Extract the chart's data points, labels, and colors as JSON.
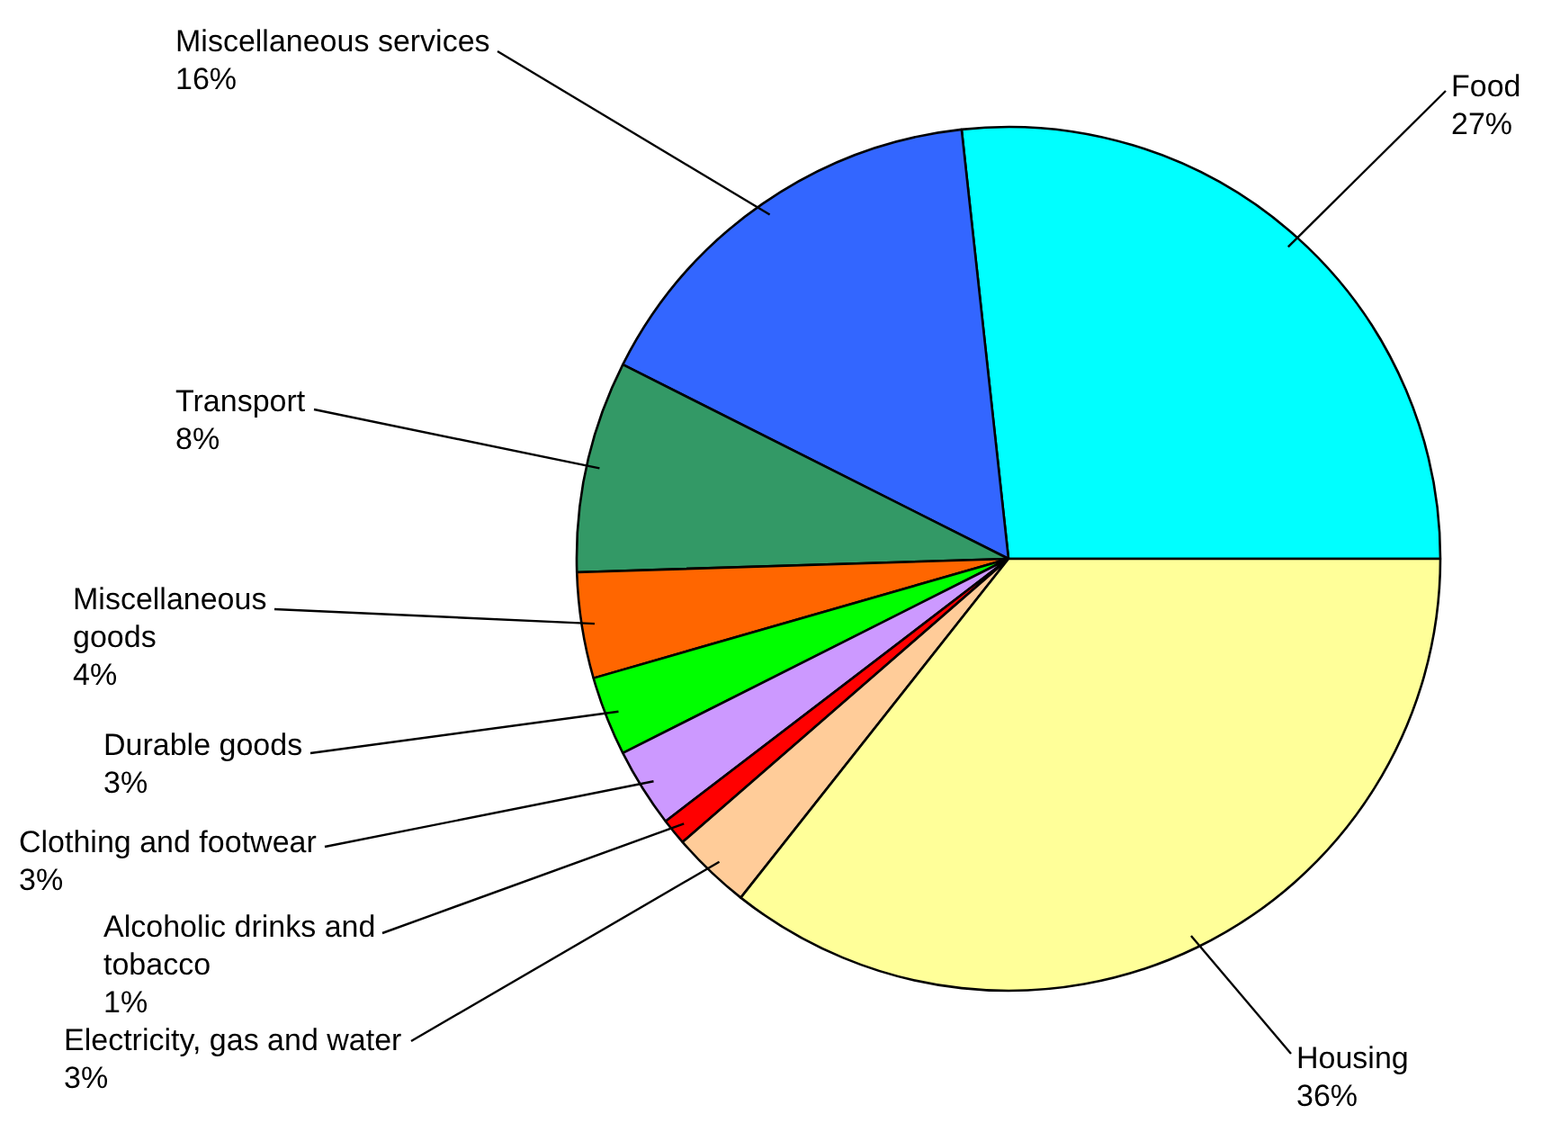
{
  "chart_data": {
    "type": "pie",
    "categories": [
      "Food",
      "Miscellaneous services",
      "Transport",
      "Miscellaneous goods",
      "Durable goods",
      "Clothing and footwear",
      "Alcoholic drinks and tobacco",
      "Electricity, gas and water",
      "Housing"
    ],
    "values": [
      27,
      16,
      8,
      4,
      3,
      3,
      1,
      3,
      36
    ],
    "value_labels": [
      "27%",
      "16%",
      "8%",
      "4%",
      "3%",
      "3%",
      "1%",
      "3%",
      "36%"
    ],
    "colors": [
      "#00ffff",
      "#3366ff",
      "#339966",
      "#ff6600",
      "#00ff00",
      "#cc99ff",
      "#ff0000",
      "#ffcc99",
      "#ffff99"
    ]
  }
}
